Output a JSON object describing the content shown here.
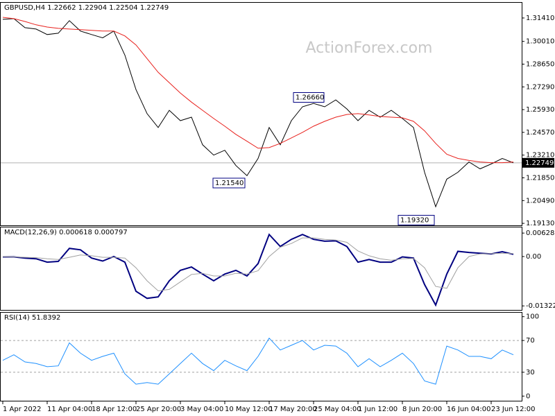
{
  "chart_data": [
    {
      "type": "line",
      "title": "GBPUSD,H4  1.22662 1.22904 1.22504 1.22749",
      "watermark": "ActionForex.com",
      "series": [
        {
          "color": "#000000",
          "width": 1,
          "values": [
            1.3133,
            1.3137,
            1.3083,
            1.3075,
            1.3042,
            1.305,
            1.3125,
            1.3063,
            1.3042,
            1.3022,
            1.3063,
            1.2919,
            1.2713,
            1.2569,
            1.2486,
            1.2589,
            1.2527,
            1.2548,
            1.2383,
            1.2321,
            1.235,
            1.2259,
            1.2198,
            1.2301,
            1.2486,
            1.2383,
            1.2527,
            1.261,
            1.263,
            1.261,
            1.2651,
            1.2597,
            1.2527,
            1.2589,
            1.2548,
            1.2589,
            1.254,
            1.2486,
            1.2218,
            1.2012,
            1.2177,
            1.2218,
            1.228,
            1.2239,
            1.2268,
            1.2301,
            1.2275
          ]
        },
        {
          "color": "#e8201c",
          "width": 1,
          "values": [
            1.3145,
            1.3137,
            1.312,
            1.31,
            1.3087,
            1.3079,
            1.3075,
            1.3071,
            1.3067,
            1.3063,
            1.3063,
            1.3034,
            1.298,
            1.2898,
            1.2816,
            1.2754,
            1.2692,
            1.2638,
            1.2589,
            1.254,
            1.2494,
            1.2445,
            1.2404,
            1.2362,
            1.2366,
            1.2391,
            1.2424,
            1.2457,
            1.2494,
            1.2523,
            1.2548,
            1.2564,
            1.2569,
            1.2561,
            1.2552,
            1.2548,
            1.2544,
            1.2523,
            1.2466,
            1.2391,
            1.2326,
            1.2301,
            1.2289,
            1.228,
            1.2276,
            1.2276,
            1.228
          ]
        }
      ],
      "ylim": [
        1.1901,
        1.3232
      ],
      "yticks": [
        {
          "value": 1.3141,
          "label": "1.31410"
        },
        {
          "value": 1.3001,
          "label": "1.30010"
        },
        {
          "value": 1.2865,
          "label": "1.28650"
        },
        {
          "value": 1.2729,
          "label": "1.27290"
        },
        {
          "value": 1.2593,
          "label": "1.25930"
        },
        {
          "value": 1.2457,
          "label": "1.24570"
        },
        {
          "value": 1.2321,
          "label": "1.23210"
        },
        {
          "value": 1.2185,
          "label": "1.21850"
        },
        {
          "value": 1.2049,
          "label": "1.20490"
        },
        {
          "value": 1.1913,
          "label": "1.19130"
        }
      ],
      "current": {
        "value": 1.22749,
        "label": "1.22749"
      },
      "annotations": [
        {
          "value": 1.2666,
          "label": "1.26660"
        },
        {
          "value": 1.2154,
          "label": "1.21540"
        },
        {
          "value": 1.1932,
          "label": "1.19320"
        }
      ]
    },
    {
      "type": "line",
      "title": "MACD(12,26,9) 0.000618 0.000797",
      "series": [
        {
          "color": "#000080",
          "width": 2,
          "values": [
            -0.0001,
            -0.0001,
            -0.0004,
            -0.0006,
            -0.0015,
            -0.0013,
            0.0022,
            0.0018,
            -0.0004,
            -0.0012,
            0.0,
            -0.0015,
            -0.0093,
            -0.0112,
            -0.0108,
            -0.0065,
            -0.0037,
            -0.0028,
            -0.0047,
            -0.0065,
            -0.0047,
            -0.0037,
            -0.0052,
            -0.0019,
            0.0059,
            0.0027,
            0.0046,
            0.0059,
            0.0046,
            0.0041,
            0.0042,
            0.0027,
            -0.0015,
            -0.0008,
            -0.0015,
            -0.0015,
            -0.0001,
            -0.0004,
            -0.0075,
            -0.013,
            -0.0047,
            0.0014,
            0.0011,
            0.0009,
            0.0007,
            0.0013,
            0.0006
          ]
        },
        {
          "color": "#a0a0a0",
          "width": 1,
          "values": [
            0.0,
            -0.0001,
            -0.0002,
            -0.0003,
            -0.0006,
            -0.0008,
            -0.0002,
            0.0004,
            0.0002,
            -0.0002,
            -0.0002,
            -0.0004,
            -0.003,
            -0.0065,
            -0.0092,
            -0.0088,
            -0.0068,
            -0.0048,
            -0.0045,
            -0.0052,
            -0.0052,
            -0.0045,
            -0.0047,
            -0.0038,
            0.0,
            0.0025,
            0.0035,
            0.005,
            0.005,
            0.0046,
            0.0044,
            0.0038,
            0.0015,
            0.0002,
            -0.0006,
            -0.001,
            -0.0006,
            -0.0005,
            -0.003,
            -0.008,
            -0.0085,
            -0.003,
            0.0,
            0.0007,
            0.0008,
            0.0009,
            0.0008
          ]
        }
      ],
      "ylim": [
        -0.0143,
        0.0078
      ],
      "yticks": [
        0.006285,
        {
          "value": 0,
          "label": "0.00"
        },
        -0.013223
      ]
    },
    {
      "type": "line",
      "title": "RSI(14) 51.8392",
      "categories": [
        "1 Apr 2022",
        null,
        null,
        null,
        "11 Apr 04:00",
        null,
        null,
        null,
        "18 Apr 12:00",
        null,
        null,
        null,
        "25 Apr 20:00",
        null,
        null,
        null,
        "3 May 04:00",
        null,
        null,
        null,
        "10 May 12:00",
        null,
        null,
        null,
        "17 May 20:00",
        null,
        null,
        null,
        "25 May 04:00",
        null,
        null,
        null,
        "1 Jun 12:00",
        null,
        null,
        null,
        "8 Jun 20:00",
        null,
        null,
        null,
        "16 Jun 04:00",
        null,
        null,
        null,
        "23 Jun 12:00",
        null,
        null
      ],
      "series": [
        {
          "color": "#1e90ff",
          "width": 1,
          "values": [
            45,
            52,
            43,
            41,
            37,
            38,
            67,
            54,
            45,
            50,
            54,
            28,
            15,
            17,
            15,
            28,
            41,
            54,
            41,
            32,
            45,
            38,
            32,
            50,
            73,
            58,
            64,
            70,
            58,
            64,
            63,
            54,
            37,
            47,
            37,
            45,
            54,
            41,
            19,
            15,
            63,
            58,
            50,
            50,
            47,
            58,
            52
          ]
        }
      ],
      "ylim": [
        -5,
        105
      ],
      "yticks": [
        100,
        70,
        30,
        0
      ],
      "levels": [
        70,
        30
      ]
    }
  ]
}
